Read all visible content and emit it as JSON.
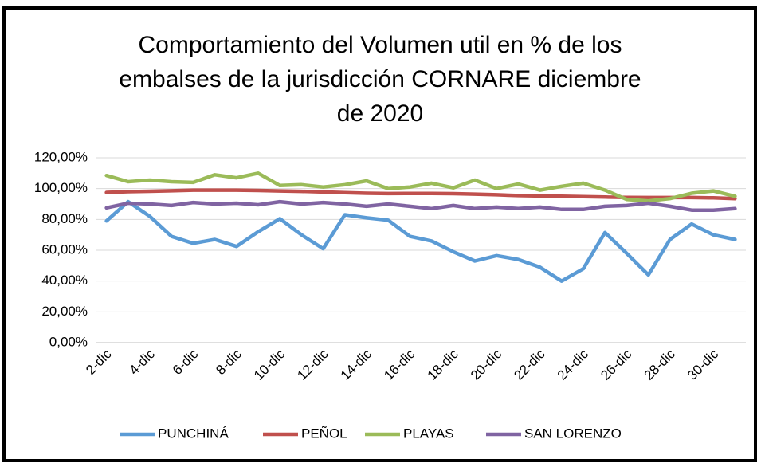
{
  "chart_data": {
    "type": "line",
    "title": [
      "Comportamiento del Volumen util en % de los",
      "embalses de la jurisdicción CORNARE diciembre",
      "de 2020"
    ],
    "categories": [
      "2-dic",
      null,
      "4-dic",
      null,
      "6-dic",
      null,
      "8-dic",
      null,
      "10-dic",
      null,
      "12-dic",
      null,
      "14-dic",
      null,
      "16-dic",
      null,
      "18-dic",
      null,
      "20-dic",
      null,
      "22-dic",
      null,
      "24-dic",
      null,
      "26-dic",
      null,
      "28-dic",
      null,
      "30-dic",
      null
    ],
    "series": [
      {
        "name": "PUNCHINÁ",
        "color": "#5b9bd5",
        "values": [
          79,
          91.5,
          82,
          69,
          64.5,
          67,
          62.5,
          72,
          80.5,
          70,
          61,
          83,
          81,
          79.5,
          69,
          66,
          59,
          53,
          56.5,
          54,
          49,
          40,
          48,
          71.5,
          58,
          44,
          67,
          77,
          70,
          67
        ]
      },
      {
        "name": "PEÑOL",
        "color": "#c0504d",
        "values": [
          97.5,
          98,
          98.3,
          98.6,
          99,
          99,
          99,
          98.8,
          98.5,
          98.2,
          97.8,
          97.4,
          97,
          96.8,
          96.9,
          96.9,
          96.7,
          96.4,
          96,
          95.5,
          95.2,
          95,
          94.8,
          94.5,
          94.3,
          94.2,
          94.2,
          94.2,
          94,
          93.5
        ]
      },
      {
        "name": "PLAYAS",
        "color": "#9bbb59",
        "values": [
          108.5,
          104.5,
          105.5,
          104.5,
          104,
          109,
          107,
          110,
          102,
          102.5,
          101,
          102.5,
          105,
          100,
          101,
          103.5,
          100.5,
          105.5,
          100,
          103,
          99,
          101.5,
          103.5,
          99,
          93,
          92,
          93.5,
          97,
          98.5,
          95
        ]
      },
      {
        "name": "SAN LORENZO",
        "color": "#8064a2",
        "values": [
          87.5,
          90.5,
          90,
          89,
          91,
          90,
          90.5,
          89.5,
          91.5,
          90,
          91,
          90,
          88.5,
          90,
          88.5,
          87,
          89,
          87,
          88,
          87,
          88,
          86.5,
          86.5,
          88.5,
          89,
          90.5,
          88.5,
          86,
          86,
          87
        ]
      }
    ],
    "ylim": [
      0,
      120
    ],
    "yticks": [
      {
        "value": 0,
        "label": "0,00%"
      },
      {
        "value": 20,
        "label": "20,00%"
      },
      {
        "value": 40,
        "label": "40,00%"
      },
      {
        "value": 60,
        "label": "60,00%"
      },
      {
        "value": 80,
        "label": "80,00%"
      },
      {
        "value": 100,
        "label": "100,00%"
      },
      {
        "value": 120,
        "label": "120,00%"
      }
    ],
    "grid": true,
    "legend": "bottom"
  }
}
